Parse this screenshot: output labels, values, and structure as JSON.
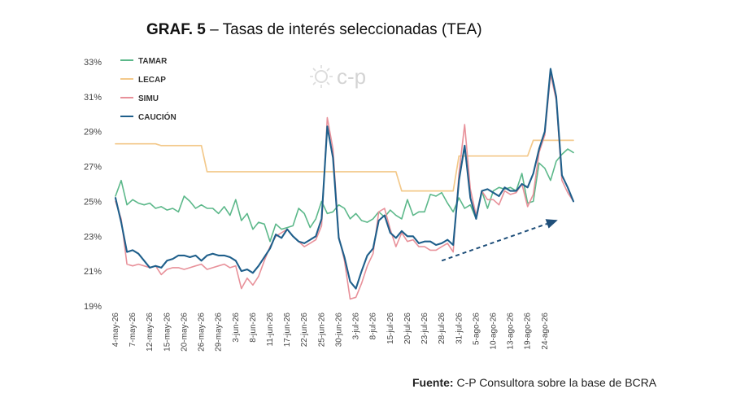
{
  "title": {
    "prefix": "GRAF. 5",
    "text": "– Tasas de interés seleccionadas (TEA)"
  },
  "source": {
    "label": "Fuente:",
    "text": "C-P Consultora sobre la base de BCRA"
  },
  "watermark": {
    "text": "c-p"
  },
  "colors": {
    "tamar": "#5cb88a",
    "lecap": "#f3c98b",
    "simu": "#e8919a",
    "caucion": "#1f5f8b",
    "trend": "#1f4f7a"
  },
  "chart_data": {
    "type": "line",
    "title": "Tasas de interés seleccionadas (TEA)",
    "ylim": [
      19,
      33
    ],
    "yticks": [
      "33%",
      "31%",
      "29%",
      "27%",
      "25%",
      "23%",
      "21%",
      "19%"
    ],
    "ytick_values": [
      33,
      31,
      29,
      27,
      25,
      23,
      21,
      19
    ],
    "x_count": 81,
    "x_labels": [
      {
        "i": 0,
        "label": "4-may-26"
      },
      {
        "i": 3,
        "label": "7-may-26"
      },
      {
        "i": 6,
        "label": "12-may-26"
      },
      {
        "i": 9,
        "label": "15-may-26"
      },
      {
        "i": 12,
        "label": "20-may-26"
      },
      {
        "i": 15,
        "label": "26-may-26"
      },
      {
        "i": 18,
        "label": "29-may-26"
      },
      {
        "i": 21,
        "label": "3-jun-26"
      },
      {
        "i": 24,
        "label": "8-jun-26"
      },
      {
        "i": 27,
        "label": "11-jun-26"
      },
      {
        "i": 30,
        "label": "17-jun-26"
      },
      {
        "i": 33,
        "label": "22-jun-26"
      },
      {
        "i": 36,
        "label": "25-jun-26"
      },
      {
        "i": 39,
        "label": "30-jun-26"
      },
      {
        "i": 42,
        "label": "3-jul-26"
      },
      {
        "i": 45,
        "label": "8-jul-26"
      },
      {
        "i": 48,
        "label": "15-jul-26"
      },
      {
        "i": 51,
        "label": "20-jul-26"
      },
      {
        "i": 54,
        "label": "23-jul-26"
      },
      {
        "i": 57,
        "label": "28-jul-26"
      },
      {
        "i": 60,
        "label": "31-jul-26"
      },
      {
        "i": 63,
        "label": "5-ago-26"
      },
      {
        "i": 66,
        "label": "10-ago-26"
      },
      {
        "i": 69,
        "label": "13-ago-26"
      },
      {
        "i": 72,
        "label": "19-ago-26"
      },
      {
        "i": 75,
        "label": "24-ago-26"
      }
    ],
    "legend": "top-left",
    "grid": false,
    "series": [
      {
        "name": "TAMAR",
        "color": "#5cb88a",
        "values": [
          25.3,
          26.2,
          24.8,
          25.1,
          24.9,
          24.8,
          24.9,
          24.6,
          24.7,
          24.5,
          24.6,
          24.4,
          25.3,
          25.0,
          24.6,
          24.8,
          24.6,
          24.6,
          24.3,
          24.7,
          24.2,
          25.1,
          23.9,
          24.3,
          23.4,
          23.8,
          23.7,
          22.7,
          23.7,
          23.4,
          23.5,
          23.6,
          24.6,
          24.3,
          23.5,
          24.0,
          25.0,
          24.3,
          24.4,
          24.8,
          24.6,
          24.0,
          24.3,
          23.9,
          23.8,
          24.0,
          24.4,
          24.1,
          24.5,
          24.2,
          24.0,
          25.1,
          24.2,
          24.4,
          24.4,
          25.4,
          25.3,
          25.5,
          24.9,
          24.4,
          25.2,
          24.6,
          24.8,
          24.0,
          25.6,
          24.6,
          25.6,
          25.8,
          25.7,
          25.8,
          25.6,
          26.6,
          24.9,
          25.0,
          27.2,
          26.9,
          26.2,
          27.3,
          27.7,
          28.0,
          27.8
        ]
      },
      {
        "name": "LECAP",
        "color": "#f3c98b",
        "values": [
          28.3,
          28.3,
          28.3,
          28.3,
          28.3,
          28.3,
          28.3,
          28.3,
          28.2,
          28.2,
          28.2,
          28.2,
          28.2,
          28.2,
          28.2,
          28.2,
          26.7,
          26.7,
          26.7,
          26.7,
          26.7,
          26.7,
          26.7,
          26.7,
          26.7,
          26.7,
          26.7,
          26.7,
          26.7,
          26.7,
          26.7,
          26.7,
          26.7,
          26.7,
          26.7,
          26.7,
          26.7,
          26.7,
          26.7,
          26.7,
          26.7,
          26.7,
          26.7,
          26.7,
          26.7,
          26.7,
          26.7,
          26.7,
          26.7,
          26.7,
          25.6,
          25.6,
          25.6,
          25.6,
          25.6,
          25.6,
          25.6,
          25.6,
          25.6,
          25.6,
          27.6,
          27.6,
          27.6,
          27.6,
          27.6,
          27.6,
          27.6,
          27.6,
          27.6,
          27.6,
          27.6,
          27.6,
          27.6,
          28.5,
          28.5,
          28.5,
          28.5,
          28.5,
          28.5,
          28.5,
          28.5
        ]
      },
      {
        "name": "SIMU",
        "color": "#e8919a",
        "values": [
          25.0,
          24.0,
          21.4,
          21.3,
          21.4,
          21.3,
          21.2,
          21.3,
          20.8,
          21.1,
          21.2,
          21.2,
          21.1,
          21.2,
          21.3,
          21.4,
          21.1,
          21.2,
          21.3,
          21.4,
          21.2,
          21.3,
          20.0,
          20.6,
          20.2,
          20.7,
          21.6,
          22.4,
          23.0,
          23.2,
          23.4,
          23.0,
          22.7,
          22.4,
          22.6,
          22.8,
          23.6,
          29.8,
          28.0,
          23.0,
          21.6,
          19.4,
          19.5,
          20.3,
          21.3,
          22.0,
          24.4,
          24.6,
          23.4,
          22.4,
          23.2,
          22.7,
          22.8,
          22.4,
          22.4,
          22.2,
          22.2,
          22.4,
          22.6,
          22.1,
          26.6,
          29.4,
          25.7,
          24.2,
          25.6,
          25.1,
          25.1,
          24.8,
          25.6,
          25.4,
          25.5,
          26.0,
          24.7,
          25.4,
          27.8,
          28.8,
          32.3,
          30.8,
          26.2,
          25.5,
          25.0
        ]
      },
      {
        "name": "CAUCIÓN",
        "color": "#1f5f8b",
        "values": [
          25.2,
          23.8,
          22.1,
          22.2,
          22.0,
          21.6,
          21.2,
          21.3,
          21.2,
          21.6,
          21.7,
          21.9,
          21.9,
          21.8,
          21.9,
          21.6,
          21.9,
          22.0,
          21.9,
          21.9,
          21.8,
          21.6,
          21.0,
          21.1,
          20.9,
          21.3,
          21.8,
          22.3,
          23.1,
          22.9,
          23.4,
          23.0,
          22.7,
          22.6,
          22.8,
          23.0,
          24.0,
          29.3,
          27.5,
          22.9,
          21.8,
          20.4,
          20.0,
          21.0,
          21.9,
          22.3,
          23.9,
          24.2,
          23.2,
          22.9,
          23.3,
          23.0,
          23.0,
          22.6,
          22.7,
          22.7,
          22.5,
          22.6,
          22.8,
          22.5,
          26.2,
          28.2,
          25.2,
          24.0,
          25.6,
          25.7,
          25.5,
          25.3,
          25.8,
          25.6,
          25.6,
          26.0,
          25.8,
          26.6,
          28.0,
          29.0,
          32.6,
          31.0,
          26.5,
          25.8,
          25.0
        ]
      }
    ],
    "annotations": [
      {
        "type": "trend-arrow",
        "from": {
          "i": 57,
          "y": 21.6
        },
        "to": {
          "i": 77,
          "y": 23.9
        }
      }
    ]
  }
}
